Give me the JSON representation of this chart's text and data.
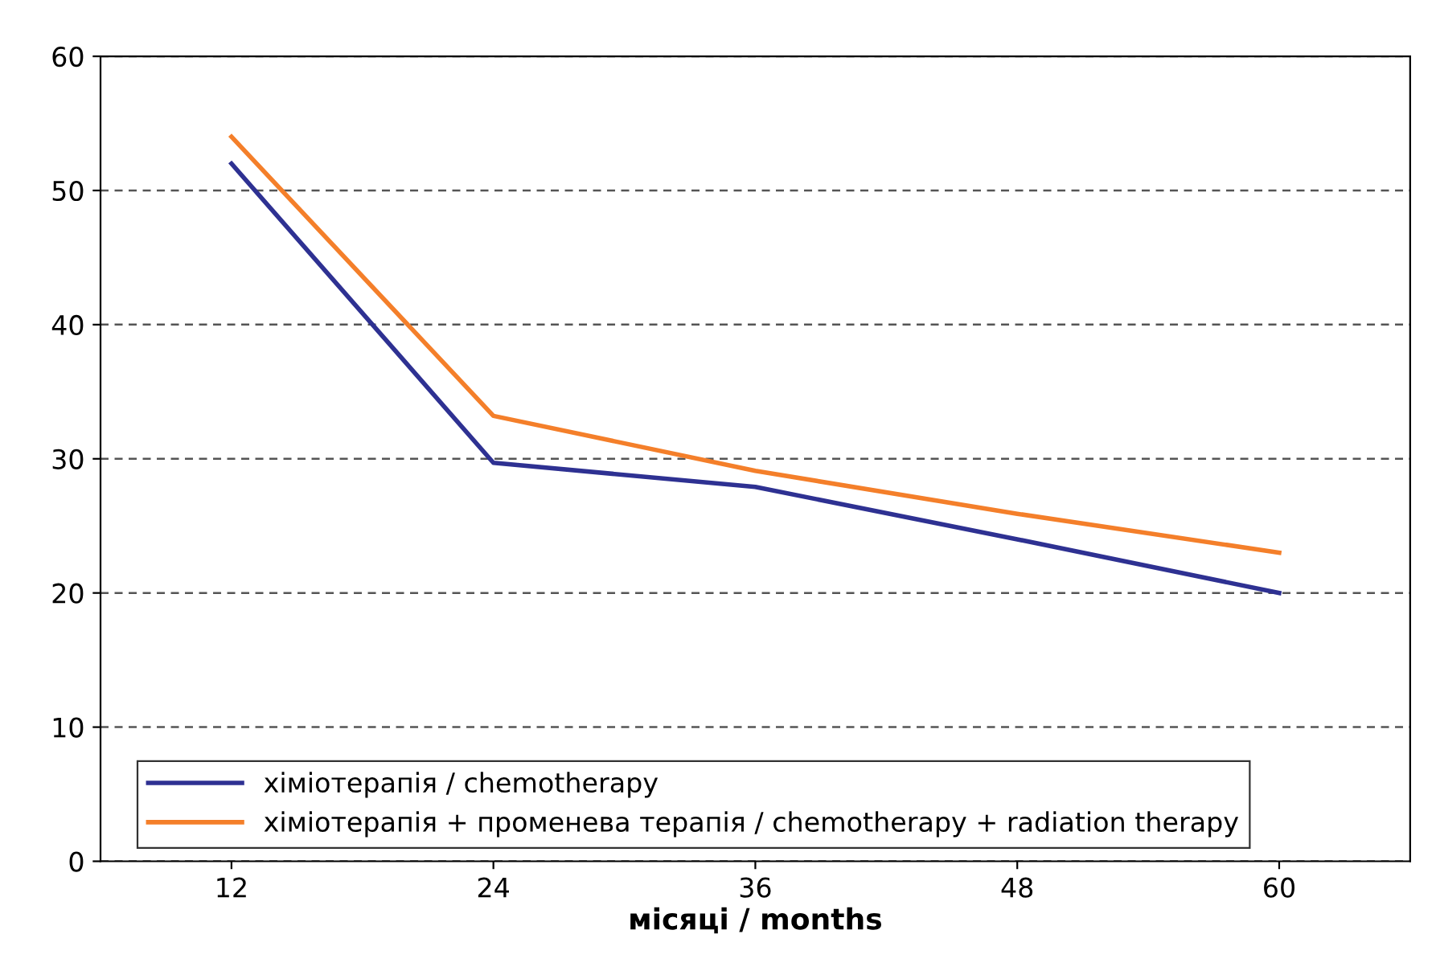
{
  "chart_data": {
    "type": "line",
    "xlabel": "місяці / months",
    "x": [
      12,
      24,
      36,
      48,
      60
    ],
    "series": [
      {
        "name": "хіміотерапія / chemotherapy",
        "color": "#2e3192",
        "values": [
          52,
          29.7,
          27.9,
          24,
          20
        ]
      },
      {
        "name": "хіміотерапія + променева терапія / chemotherapy + radiation therapy",
        "color": "#f47f2a",
        "values": [
          54,
          33.2,
          29.1,
          25.9,
          23
        ]
      }
    ],
    "xlim": [
      6,
      66
    ],
    "xticks": [
      12,
      24,
      36,
      48,
      60
    ],
    "ylim": [
      0,
      60
    ],
    "yticks": [
      0,
      10,
      20,
      30,
      40,
      50,
      60
    ],
    "grid": "y",
    "legend": "bottom left",
    "marker": "none",
    "line_style": "solid"
  }
}
